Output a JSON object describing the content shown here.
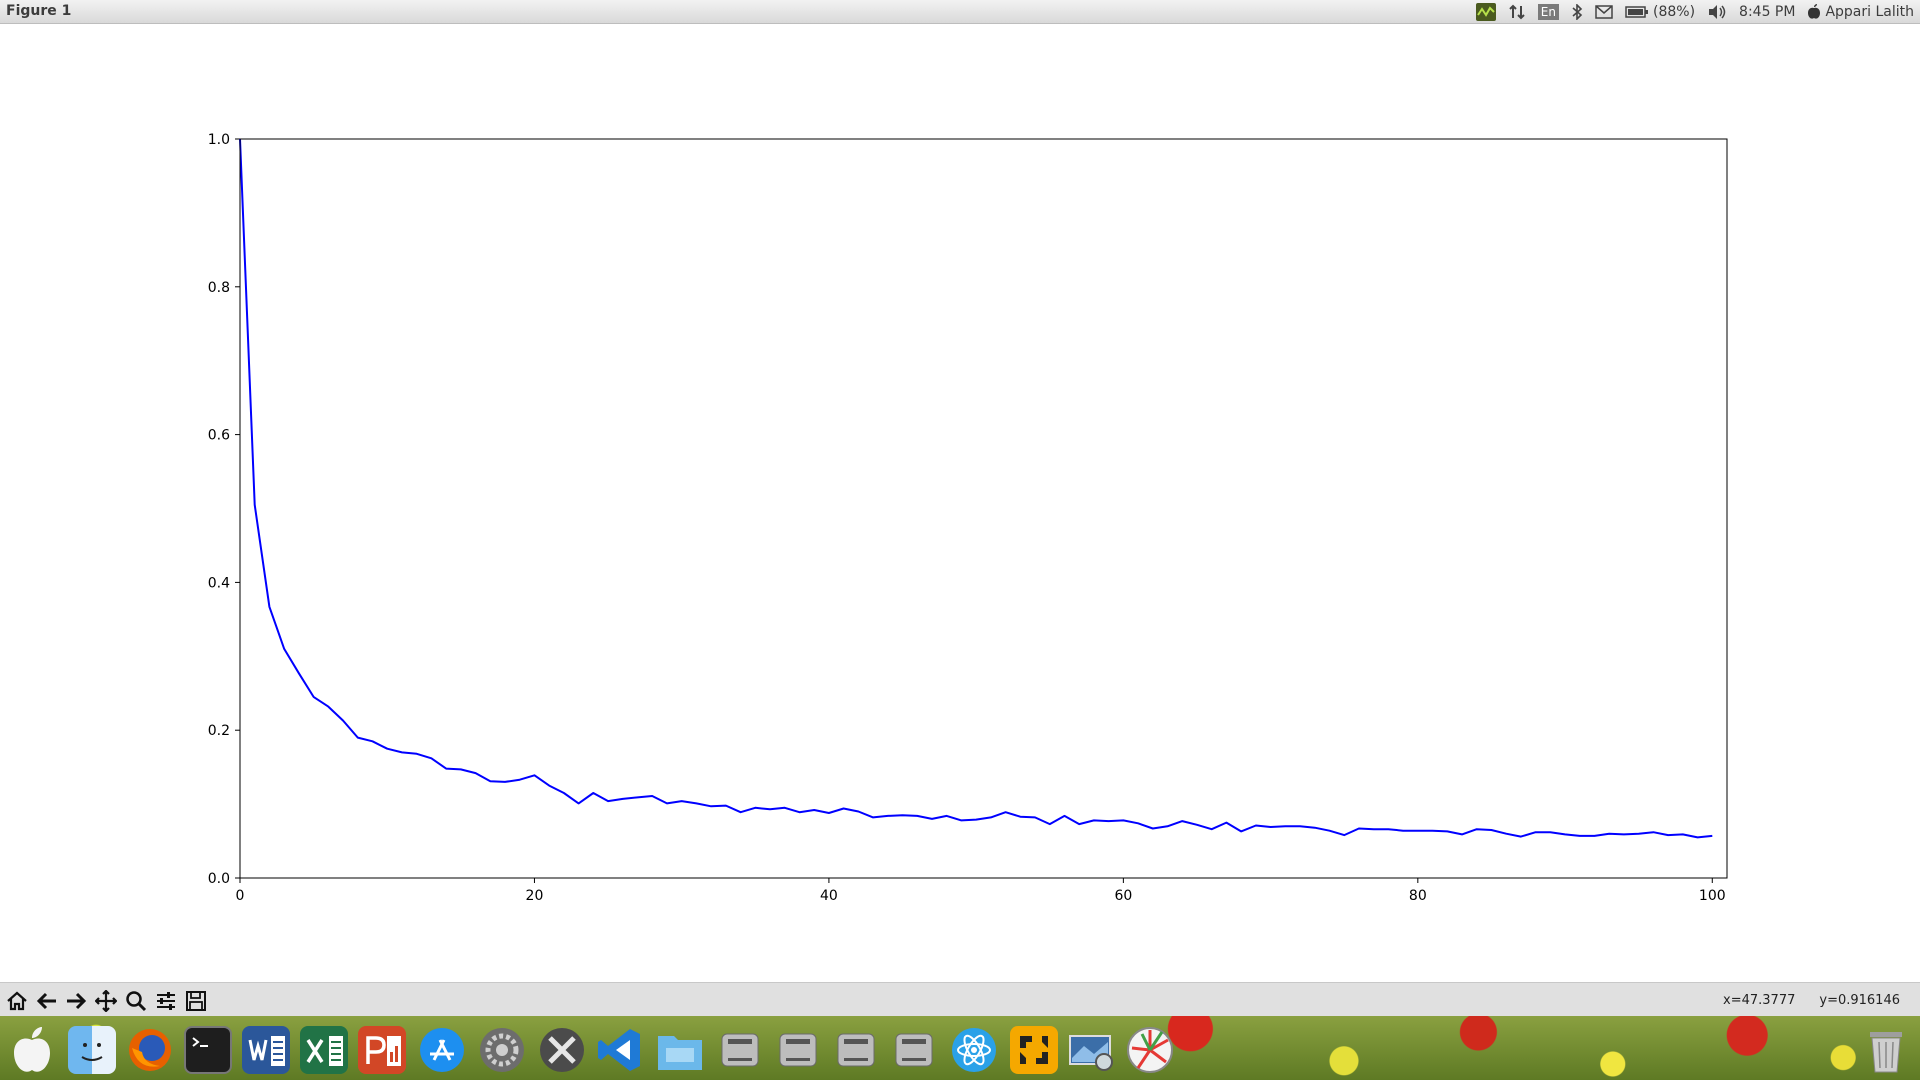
{
  "window": {
    "title": "Figure 1"
  },
  "menubar": {
    "keyboard_layout": "En",
    "battery": "(88%)",
    "time": "8:45 PM",
    "user": "Appari Lalith",
    "icons": [
      "sensor-monitor-icon",
      "network-icon",
      "keyboard-layout-icon",
      "bluetooth-icon",
      "mail-icon",
      "battery-icon",
      "volume-icon",
      "apple-icon"
    ]
  },
  "toolbar": {
    "buttons": [
      "home-icon",
      "back-icon",
      "forward-icon",
      "pan-icon",
      "zoom-icon",
      "configure-subplots-icon",
      "save-icon"
    ],
    "coord_x": "x=47.3777",
    "coord_y": "y=0.916146"
  },
  "chart_data": {
    "type": "line",
    "title": "",
    "xlabel": "",
    "ylabel": "",
    "xlim": [
      0,
      101
    ],
    "ylim": [
      0.0,
      1.0
    ],
    "xticks": [
      0,
      20,
      40,
      60,
      80,
      100
    ],
    "xtick_labels": [
      "0",
      "20",
      "40",
      "60",
      "80",
      "100"
    ],
    "yticks": [
      0.0,
      0.2,
      0.4,
      0.6,
      0.8,
      1.0
    ],
    "ytick_labels": [
      "0.0",
      "0.2",
      "0.4",
      "0.6",
      "0.8",
      "1.0"
    ],
    "grid": false,
    "series": [
      {
        "color": "#0000ff",
        "x": [
          0,
          1,
          2,
          3,
          4,
          5,
          6,
          7,
          8,
          9,
          10,
          11,
          12,
          13,
          14,
          15,
          16,
          17,
          18,
          19,
          20,
          21,
          22,
          23,
          24,
          25,
          26,
          27,
          28,
          29,
          30,
          31,
          32,
          33,
          34,
          35,
          36,
          37,
          38,
          39,
          40,
          41,
          42,
          43,
          44,
          45,
          46,
          47,
          48,
          49,
          50,
          51,
          52,
          53,
          54,
          55,
          56,
          57,
          58,
          59,
          60,
          61,
          62,
          63,
          64,
          65,
          66,
          67,
          68,
          69,
          70,
          71,
          72,
          73,
          74,
          75,
          76,
          77,
          78,
          79,
          80,
          81,
          82,
          83,
          84,
          85,
          86,
          87,
          88,
          89,
          90,
          91,
          92,
          93,
          94,
          95,
          96,
          97,
          98,
          99,
          100
        ],
        "y": [
          1.0,
          0.505,
          0.367,
          0.31,
          0.277,
          0.245,
          0.232,
          0.213,
          0.19,
          0.185,
          0.175,
          0.17,
          0.168,
          0.162,
          0.148,
          0.147,
          0.142,
          0.131,
          0.13,
          0.133,
          0.139,
          0.125,
          0.115,
          0.101,
          0.115,
          0.104,
          0.107,
          0.109,
          0.111,
          0.101,
          0.104,
          0.101,
          0.097,
          0.098,
          0.089,
          0.095,
          0.093,
          0.095,
          0.089,
          0.092,
          0.088,
          0.094,
          0.09,
          0.082,
          0.084,
          0.085,
          0.084,
          0.08,
          0.084,
          0.078,
          0.079,
          0.082,
          0.089,
          0.083,
          0.082,
          0.073,
          0.084,
          0.073,
          0.078,
          0.077,
          0.078,
          0.074,
          0.067,
          0.07,
          0.077,
          0.072,
          0.066,
          0.075,
          0.063,
          0.071,
          0.069,
          0.07,
          0.07,
          0.068,
          0.064,
          0.058,
          0.067,
          0.066,
          0.066,
          0.064,
          0.064,
          0.064,
          0.063,
          0.059,
          0.066,
          0.065,
          0.06,
          0.056,
          0.062,
          0.062,
          0.059,
          0.057,
          0.057,
          0.06,
          0.059,
          0.06,
          0.062,
          0.058,
          0.059,
          0.055,
          0.057
        ]
      }
    ]
  },
  "dock": {
    "apps": [
      "apple-logo-icon",
      "finder-icon",
      "firefox-icon",
      "terminal-icon",
      "word-icon",
      "excel-icon",
      "powerpoint-icon",
      "app-store-icon",
      "system-preferences-icon",
      "tools-icon",
      "vscode-icon",
      "files-icon",
      "drive-1-icon",
      "drive-2-icon",
      "drive-3-icon",
      "drive-4-icon",
      "atom-icon",
      "vlc-transfer-icon",
      "screenshot-icon",
      "color-picker-icon",
      "trash-icon"
    ]
  }
}
